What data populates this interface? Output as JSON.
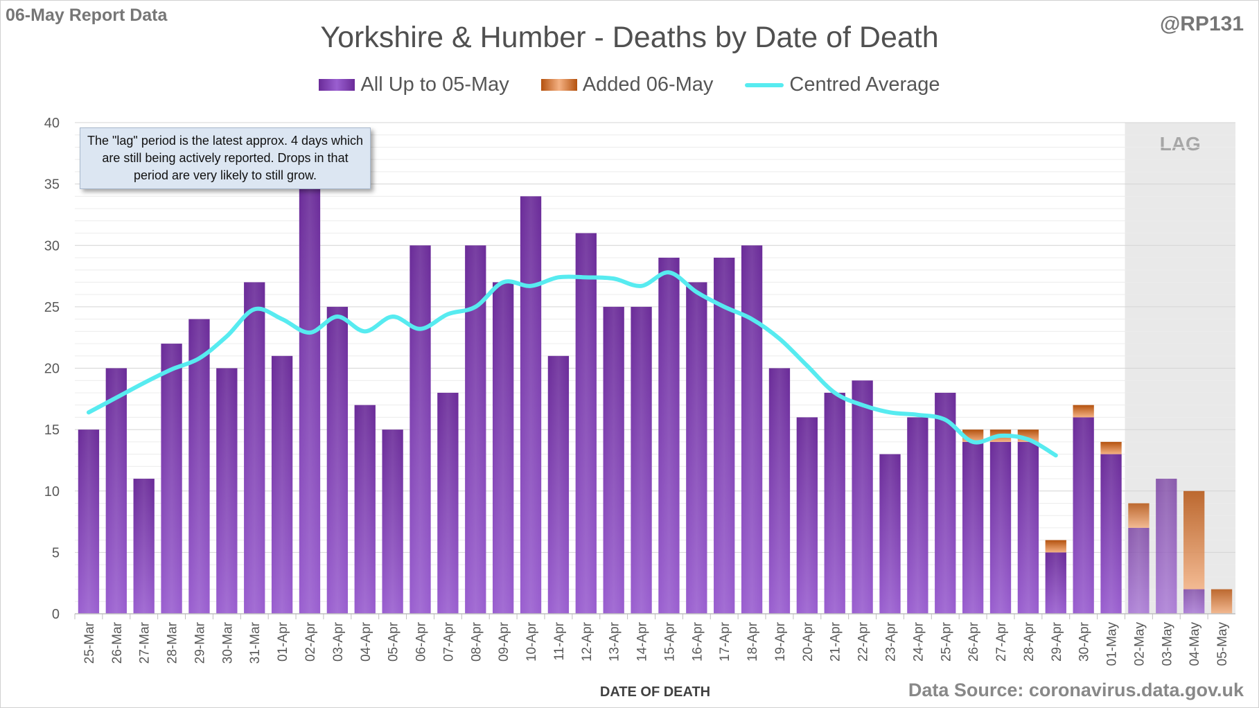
{
  "report_label": "06-May Report Data",
  "handle": "@RP131",
  "source": "Data Source: coronavirus.data.gov.uk",
  "annotation": "The \"lag\" period is the latest approx. 4 days which are still being actively reported.  Drops in that period are very likely to still grow.",
  "lag_label": "LAG",
  "colors": {
    "existing": "#7030a0",
    "added": "#c55a11",
    "average": "#57ebf0",
    "lag_shade": "#e9e9e9"
  },
  "chart_data": {
    "type": "bar",
    "stacked": true,
    "title": "Yorkshire & Humber - Deaths by Date of Death",
    "xlabel": "DATE OF DEATH",
    "ylabel": "",
    "ylim": [
      0,
      40
    ],
    "yticks": [
      0,
      5,
      10,
      15,
      20,
      25,
      30,
      35,
      40
    ],
    "grid": true,
    "legend_position": "top",
    "categories": [
      "25-Mar",
      "26-Mar",
      "27-Mar",
      "28-Mar",
      "29-Mar",
      "30-Mar",
      "31-Mar",
      "01-Apr",
      "02-Apr",
      "03-Apr",
      "04-Apr",
      "05-Apr",
      "06-Apr",
      "07-Apr",
      "08-Apr",
      "09-Apr",
      "10-Apr",
      "11-Apr",
      "12-Apr",
      "13-Apr",
      "14-Apr",
      "15-Apr",
      "16-Apr",
      "17-Apr",
      "18-Apr",
      "19-Apr",
      "20-Apr",
      "21-Apr",
      "22-Apr",
      "23-Apr",
      "24-Apr",
      "25-Apr",
      "26-Apr",
      "27-Apr",
      "28-Apr",
      "29-Apr",
      "30-Apr",
      "01-May",
      "02-May",
      "03-May",
      "04-May",
      "05-May"
    ],
    "series": [
      {
        "name": "All Up to 05-May",
        "values": [
          15,
          20,
          11,
          22,
          24,
          20,
          27,
          21,
          35,
          25,
          17,
          15,
          30,
          18,
          30,
          27,
          34,
          21,
          31,
          25,
          25,
          29,
          27,
          29,
          30,
          20,
          16,
          18,
          19,
          13,
          16,
          18,
          14,
          14,
          14,
          5,
          16,
          13,
          7,
          11,
          2,
          0
        ]
      },
      {
        "name": "Added 06-May",
        "values": [
          0,
          0,
          0,
          0,
          0,
          0,
          0,
          0,
          0,
          0,
          0,
          0,
          0,
          0,
          0,
          0,
          0,
          0,
          0,
          0,
          0,
          0,
          0,
          0,
          0,
          0,
          0,
          0,
          0,
          0,
          0,
          0,
          1,
          1,
          1,
          1,
          1,
          1,
          2,
          0,
          8,
          2
        ]
      },
      {
        "name": "Centred Average",
        "type": "line",
        "values": [
          16.4,
          17.6,
          18.8,
          19.9,
          20.8,
          22.6,
          24.8,
          24.0,
          22.9,
          24.2,
          23.0,
          24.2,
          23.2,
          24.4,
          25.0,
          27.0,
          26.7,
          27.4,
          27.4,
          27.3,
          26.7,
          27.8,
          26.2,
          25.0,
          24.0,
          22.4,
          20.2,
          18.0,
          17.0,
          16.4,
          16.2,
          15.8,
          14.0,
          14.5,
          14.2,
          12.9,
          null,
          null,
          null,
          null,
          null,
          null
        ]
      }
    ],
    "lag_categories": [
      "02-May",
      "03-May",
      "04-May",
      "05-May"
    ]
  }
}
